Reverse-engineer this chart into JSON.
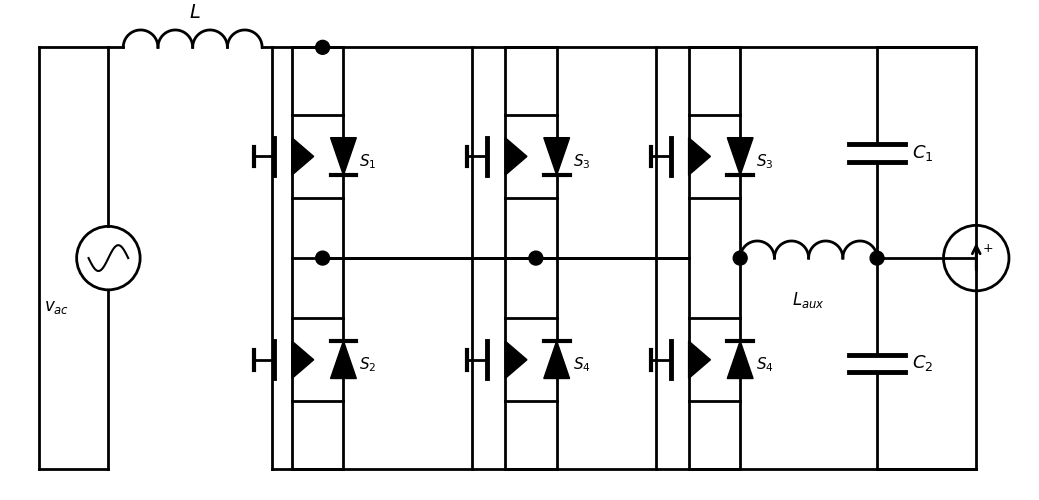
{
  "bg_color": "#ffffff",
  "line_color": "#000000",
  "line_width": 2.0,
  "fig_width": 10.39,
  "fig_height": 5.0
}
